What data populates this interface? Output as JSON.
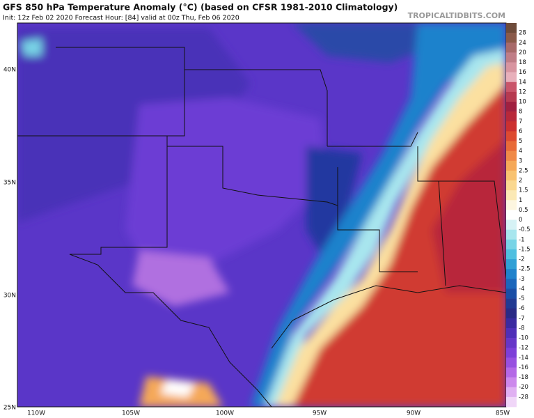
{
  "header": {
    "title": "GFS 850 hPa Temperature Anomaly (°C) (based on CFSR 1981-2010 Climatology)",
    "subtitle": "Init: 12z Feb 02 2020   Forecast Hour: [84]   valid at 00z Thu, Feb 06 2020",
    "site": "TROPICALTIDBITS.COM"
  },
  "axes": {
    "lat_labels": [
      "40N",
      "35N",
      "30N",
      "25N"
    ],
    "lon_labels": [
      "110W",
      "105W",
      "100W",
      "95W",
      "90W",
      "85W"
    ]
  },
  "colorbar": {
    "labels": [
      "28",
      "24",
      "20",
      "18",
      "16",
      "14",
      "12",
      "10",
      "8",
      "7",
      "6",
      "5",
      "4",
      "3",
      "2.5",
      "2",
      "1.5",
      "1",
      "0.5",
      "0",
      "-0.5",
      "-1",
      "-1.5",
      "-2",
      "-2.5",
      "-3",
      "-4",
      "-5",
      "-6",
      "-7",
      "-8",
      "-10",
      "-12",
      "-14",
      "-16",
      "-18",
      "-20",
      "-28"
    ],
    "colors": [
      "#6e4b3a",
      "#8a5a4a",
      "#a86a6a",
      "#c07d87",
      "#d894a0",
      "#e8b0bb",
      "#c9556a",
      "#b63a50",
      "#a02040",
      "#b8283a",
      "#cc3030",
      "#dd4a30",
      "#e86a38",
      "#f08a48",
      "#f5a858",
      "#f8c270",
      "#fad890",
      "#fbe9b5",
      "#fdf6e0",
      "#ffffff",
      "#d6f2f5",
      "#a8e6ee",
      "#78d4e6",
      "#4fbfe0",
      "#2fa0d6",
      "#1f82cc",
      "#1a66bb",
      "#1a4ea6",
      "#223a93",
      "#2a2a86",
      "#3a2aa0",
      "#4f2fb8",
      "#6636c8",
      "#7d3fd8",
      "#9850e0",
      "#b468e6",
      "#cc88ec",
      "#e0b0f2",
      "#f0d6f8"
    ]
  }
}
